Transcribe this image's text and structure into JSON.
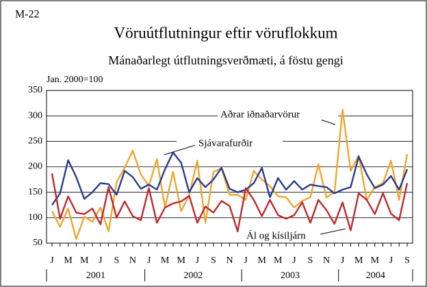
{
  "chart_data": {
    "type": "line",
    "code": "M-22",
    "title": "Vöruútflutningur eftir vöruflokkum",
    "subtitle": "Mánaðarlegt útflutningsverðmæti, á föstu gengi",
    "y_label": "Jan. 2000=100",
    "categories": [
      "J",
      null,
      "M",
      null,
      "M",
      null,
      "J",
      null,
      "S",
      null,
      "N",
      null,
      "J",
      null,
      "M",
      null,
      "M",
      null,
      "J",
      null,
      "S",
      null,
      "N",
      null,
      "J",
      null,
      "M",
      null,
      "M",
      null,
      "J",
      null,
      "S",
      null,
      "N",
      null,
      "J",
      null,
      "M",
      null,
      "M",
      null,
      "J",
      null,
      "S"
    ],
    "year_labels": [
      "2001",
      "2002",
      "2003",
      "2004"
    ],
    "series": [
      {
        "name": "Sjávarafurðir",
        "color": "#2a3a8f",
        "values": [
          125,
          148,
          213,
          180,
          137,
          150,
          168,
          166,
          145,
          192,
          180,
          157,
          165,
          155,
          195,
          228,
          208,
          150,
          178,
          160,
          175,
          198,
          157,
          150,
          155,
          168,
          198,
          140,
          178,
          155,
          172,
          155,
          165,
          162,
          160,
          148,
          155,
          160,
          220,
          185,
          158,
          165,
          182,
          155,
          195
        ]
      },
      {
        "name": "Aðrar iðnaðarvörur",
        "color": "#f2a52b",
        "values": [
          113,
          82,
          118,
          58,
          102,
          92,
          120,
          73,
          170,
          198,
          232,
          185,
          162,
          215,
          120,
          190,
          113,
          145,
          212,
          90,
          190,
          197,
          145,
          145,
          135,
          192,
          175,
          162,
          142,
          140,
          120,
          133,
          140,
          205,
          140,
          150,
          312,
          192,
          222,
          135,
          160,
          168,
          212,
          135,
          225
        ]
      },
      {
        "name": "Ál og kísiljárn",
        "color": "#c1272d",
        "values": [
          187,
          98,
          142,
          110,
          107,
          118,
          87,
          160,
          100,
          132,
          103,
          95,
          158,
          90,
          120,
          128,
          132,
          143,
          90,
          122,
          110,
          133,
          123,
          73,
          158,
          135,
          103,
          135,
          105,
          98,
          105,
          130,
          90,
          135,
          115,
          88,
          130,
          75,
          148,
          135,
          107,
          148,
          108,
          95,
          168
        ]
      }
    ],
    "ylim": [
      50,
      350
    ],
    "yticks": [
      50,
      100,
      150,
      200,
      250,
      300,
      350
    ],
    "grid": true
  }
}
